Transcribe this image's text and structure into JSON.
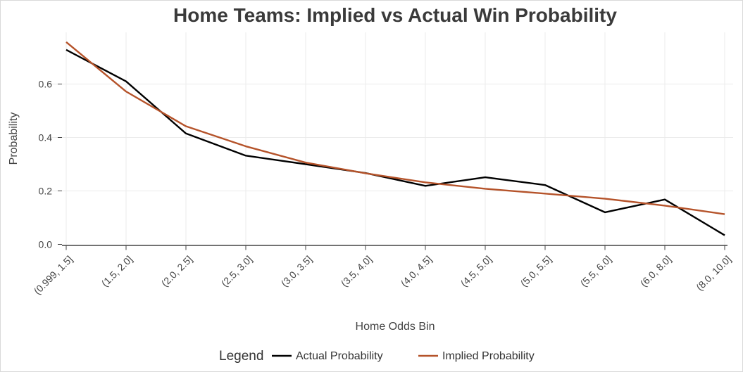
{
  "chart_data": {
    "type": "line",
    "title": "Home Teams: Implied vs Actual Win Probability",
    "xlabel": "Home Odds Bin",
    "ylabel": "Probability",
    "categories": [
      "(0.999, 1.5]",
      "(1.5, 2.0]",
      "(2.0, 2.5]",
      "(2.5, 3.0]",
      "(3.0, 3.5]",
      "(3.5, 4.0]",
      "(4.0, 4.5]",
      "(4.5, 5.0]",
      "(5.0, 5.5]",
      "(5.5, 6.0]",
      "(6.0, 8.0]",
      "(8.0, 10.0]"
    ],
    "ylim": [
      0,
      0.78
    ],
    "yticks": [
      0.0,
      0.2,
      0.4,
      0.6
    ],
    "ytick_labels": [
      "0.0",
      "0.2",
      "0.4",
      "0.6"
    ],
    "grid": true,
    "legend": {
      "title": "Legend",
      "position": "bottom"
    },
    "series": [
      {
        "name": "Actual Probability",
        "color": "#000000",
        "values": [
          0.728,
          0.61,
          0.415,
          0.332,
          0.3,
          0.267,
          0.219,
          0.251,
          0.222,
          0.12,
          0.168,
          0.034
        ]
      },
      {
        "name": "Implied Probability",
        "color": "#b5532a",
        "values": [
          0.757,
          0.572,
          0.442,
          0.367,
          0.306,
          0.266,
          0.232,
          0.208,
          0.19,
          0.171,
          0.145,
          0.113
        ]
      }
    ]
  }
}
